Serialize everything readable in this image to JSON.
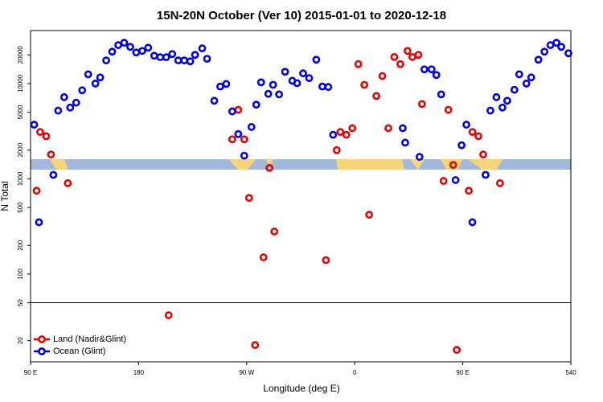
{
  "chart_data": {
    "type": "scatter",
    "title": "15N-20N October (Ver 10)   2015-01-01 to 2020-12-18",
    "x_label": "Longitude (deg E)",
    "y_label": "N Total",
    "log_y": true,
    "legend": "lower left",
    "hline": 50,
    "xlim": [
      90,
      540
    ],
    "ylim": [
      12,
      36000
    ],
    "xticks": [
      {
        "value": 90,
        "label": "90 E"
      },
      180,
      {
        "value": 270,
        "label": "90 W"
      },
      {
        "value": 360,
        "label": "0"
      },
      {
        "value": 450,
        "label": "90 E"
      },
      540
    ],
    "yticks": [
      20,
      50,
      100,
      200,
      500,
      1000,
      2000,
      5000,
      10000,
      20000
    ],
    "series": [
      {
        "name": "Land (Nadir&Glint)",
        "color": "#ee0000",
        "x": [
          95,
          98,
          103,
          107,
          121,
          205,
          258,
          263,
          268,
          272,
          277,
          284,
          289,
          293,
          336,
          345,
          348,
          353,
          358,
          363,
          368,
          372,
          378,
          383,
          388,
          393,
          398,
          404,
          408,
          413,
          416,
          434,
          438,
          442,
          445,
          455,
          458,
          463,
          467,
          481
        ],
        "values": [
          750,
          3100,
          2800,
          1800,
          900,
          37,
          2600,
          5300,
          2600,
          630,
          18,
          150,
          1300,
          280,
          140,
          2000,
          3100,
          2900,
          3400,
          16000,
          9700,
          420,
          7400,
          12000,
          3400,
          19000,
          16000,
          22000,
          19000,
          20000,
          6100,
          950,
          5300,
          1400,
          16,
          750,
          3100,
          2800,
          1800,
          900
        ]
      },
      {
        "name": "Ocean (Glint)",
        "color": "#0000ee",
        "x": [
          93,
          97,
          109,
          113,
          118,
          123,
          128,
          133,
          138,
          144,
          148,
          153,
          158,
          163,
          168,
          173,
          178,
          183,
          188,
          193,
          198,
          203,
          208,
          213,
          218,
          223,
          227,
          233,
          237,
          243,
          248,
          253,
          258,
          263,
          268,
          274,
          278,
          282,
          288,
          292,
          297,
          302,
          308,
          312,
          317,
          322,
          328,
          333,
          338,
          342,
          400,
          402,
          414,
          418,
          424,
          428,
          432,
          444,
          449,
          453,
          458,
          469,
          473,
          478,
          483,
          487,
          493,
          497,
          503,
          507,
          513,
          518,
          523,
          528,
          532,
          538
        ],
        "values": [
          3700,
          350,
          1100,
          5200,
          7200,
          5600,
          6300,
          8500,
          12500,
          10000,
          11600,
          17500,
          21600,
          25300,
          26800,
          24300,
          21200,
          22000,
          23800,
          19600,
          18900,
          18900,
          20400,
          17500,
          17500,
          17100,
          20000,
          23400,
          18200,
          6600,
          9300,
          9900,
          5100,
          2950,
          1750,
          3500,
          6000,
          10300,
          7800,
          9700,
          7700,
          13300,
          10700,
          10100,
          12800,
          11400,
          17800,
          9300,
          9200,
          2900,
          3400,
          2400,
          1700,
          14100,
          14100,
          12300,
          7700,
          970,
          2250,
          3700,
          350,
          1100,
          5200,
          7200,
          5600,
          6600,
          8600,
          12500,
          10000,
          11600,
          17800,
          21600,
          25300,
          26800,
          24300,
          20800
        ]
      }
    ]
  }
}
